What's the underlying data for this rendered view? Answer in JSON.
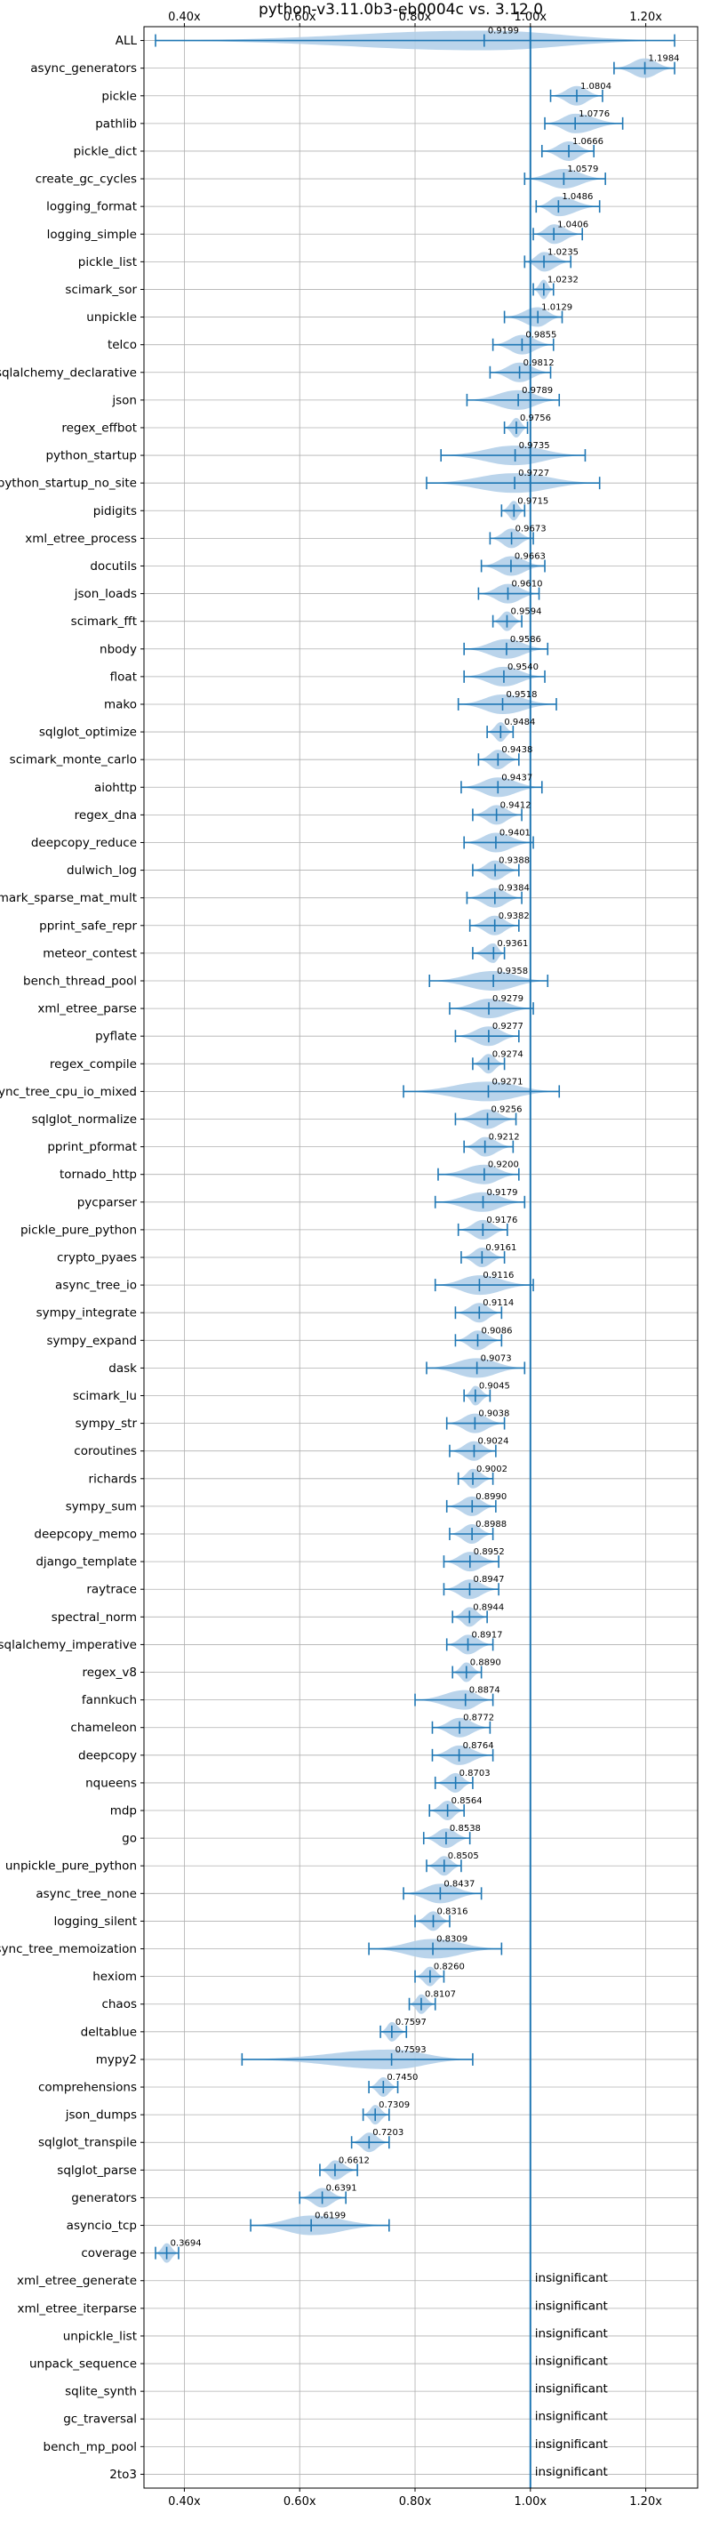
{
  "chart_data": {
    "type": "violin",
    "title": "python-v3.11.0b3-eb0004c vs. 3.12.0",
    "xlim": [
      0.33,
      1.29
    ],
    "x_ticks": [
      0.4,
      0.6,
      0.8,
      1.0,
      1.2
    ],
    "x_tick_labels": [
      "0.40x",
      "0.60x",
      "0.80x",
      "1.00x",
      "1.20x"
    ],
    "x_tick_positions": [
      "top",
      "bottom"
    ],
    "grid": true,
    "reference_line": 1.0,
    "colors": {
      "violin": "#aecde8",
      "whisker": "#1f77b4",
      "reference": "#1f77b4",
      "grid": "#b0b0b0"
    },
    "categories": [
      "ALL",
      "async_generators",
      "pickle",
      "pathlib",
      "pickle_dict",
      "create_gc_cycles",
      "logging_format",
      "logging_simple",
      "pickle_list",
      "scimark_sor",
      "unpickle",
      "telco",
      "sqlalchemy_declarative",
      "json",
      "regex_effbot",
      "python_startup",
      "python_startup_no_site",
      "pidigits",
      "xml_etree_process",
      "docutils",
      "json_loads",
      "scimark_fft",
      "nbody",
      "float",
      "mako",
      "sqlglot_optimize",
      "scimark_monte_carlo",
      "aiohttp",
      "regex_dna",
      "deepcopy_reduce",
      "dulwich_log",
      "scimark_sparse_mat_mult",
      "pprint_safe_repr",
      "meteor_contest",
      "bench_thread_pool",
      "xml_etree_parse",
      "pyflate",
      "regex_compile",
      "async_tree_cpu_io_mixed",
      "sqlglot_normalize",
      "pprint_pformat",
      "tornado_http",
      "pycparser",
      "pickle_pure_python",
      "crypto_pyaes",
      "async_tree_io",
      "sympy_integrate",
      "sympy_expand",
      "dask",
      "scimark_lu",
      "sympy_str",
      "coroutines",
      "richards",
      "sympy_sum",
      "deepcopy_memo",
      "django_template",
      "raytrace",
      "spectral_norm",
      "sqlalchemy_imperative",
      "regex_v8",
      "fannkuch",
      "chameleon",
      "deepcopy",
      "nqueens",
      "mdp",
      "go",
      "unpickle_pure_python",
      "async_tree_none",
      "logging_silent",
      "async_tree_memoization",
      "hexiom",
      "chaos",
      "deltablue",
      "mypy2",
      "comprehensions",
      "json_dumps",
      "sqlglot_transpile",
      "sqlglot_parse",
      "generators",
      "asyncio_tcp",
      "coverage",
      "xml_etree_generate",
      "xml_etree_iterparse",
      "unpickle_list",
      "unpack_sequence",
      "sqlite_synth",
      "gc_traversal",
      "bench_mp_pool",
      "2to3"
    ],
    "values": [
      0.9199,
      1.1984,
      1.0804,
      1.0776,
      1.0666,
      1.0579,
      1.0486,
      1.0406,
      1.0235,
      1.0232,
      1.0129,
      0.9855,
      0.9812,
      0.9789,
      0.9756,
      0.9735,
      0.9727,
      0.9715,
      0.9673,
      0.9663,
      0.961,
      0.9594,
      0.9586,
      0.954,
      0.9518,
      0.9484,
      0.9438,
      0.9437,
      0.9412,
      0.9401,
      0.9388,
      0.9384,
      0.9382,
      0.9361,
      0.9358,
      0.9279,
      0.9277,
      0.9274,
      0.9271,
      0.9256,
      0.9212,
      0.92,
      0.9179,
      0.9176,
      0.9161,
      0.9116,
      0.9114,
      0.9086,
      0.9073,
      0.9045,
      0.9038,
      0.9024,
      0.9002,
      0.899,
      0.8988,
      0.8952,
      0.8947,
      0.8944,
      0.8917,
      0.889,
      0.8874,
      0.8772,
      0.8764,
      0.8703,
      0.8564,
      0.8538,
      0.8505,
      0.8437,
      0.8316,
      0.8309,
      0.826,
      0.8107,
      0.7597,
      0.7593,
      0.745,
      0.7309,
      0.7203,
      0.6612,
      0.6391,
      0.6199,
      0.3694,
      null,
      null,
      null,
      null,
      null,
      null,
      null,
      null
    ],
    "value_labels": [
      "0.9199",
      "1.1984",
      "1.0804",
      "1.0776",
      "1.0666",
      "1.0579",
      "1.0486",
      "1.0406",
      "1.0235",
      "1.0232",
      "1.0129",
      "0.9855",
      "0.9812",
      "0.9789",
      "0.9756",
      "0.9735",
      "0.9727",
      "0.9715",
      "0.9673",
      "0.9663",
      "0.9610",
      "0.9594",
      "0.9586",
      "0.9540",
      "0.9518",
      "0.9484",
      "0.9438",
      "0.9437",
      "0.9412",
      "0.9401",
      "0.9388",
      "0.9384",
      "0.9382",
      "0.9361",
      "0.9358",
      "0.9279",
      "0.9277",
      "0.9274",
      "0.9271",
      "0.9256",
      "0.9212",
      "0.9200",
      "0.9179",
      "0.9176",
      "0.9161",
      "0.9116",
      "0.9114",
      "0.9086",
      "0.9073",
      "0.9045",
      "0.9038",
      "0.9024",
      "0.9002",
      "0.8990",
      "0.8988",
      "0.8952",
      "0.8947",
      "0.8944",
      "0.8917",
      "0.8890",
      "0.8874",
      "0.8772",
      "0.8764",
      "0.8703",
      "0.8564",
      "0.8538",
      "0.8505",
      "0.8437",
      "0.8316",
      "0.8309",
      "0.8260",
      "0.8107",
      "0.7597",
      "0.7593",
      "0.7450",
      "0.7309",
      "0.7203",
      "0.6612",
      "0.6391",
      "0.6199",
      "0.3694",
      "insignificant",
      "insignificant",
      "insignificant",
      "insignificant",
      "insignificant",
      "insignificant",
      "insignificant",
      "insignificant"
    ],
    "whisker_ranges": [
      [
        0.35,
        1.25
      ],
      [
        1.145,
        1.25
      ],
      [
        1.035,
        1.125
      ],
      [
        1.025,
        1.16
      ],
      [
        1.02,
        1.11
      ],
      [
        0.99,
        1.13
      ],
      [
        1.01,
        1.12
      ],
      [
        1.005,
        1.09
      ],
      [
        0.99,
        1.07
      ],
      [
        1.005,
        1.04
      ],
      [
        0.955,
        1.055
      ],
      [
        0.935,
        1.04
      ],
      [
        0.93,
        1.035
      ],
      [
        0.89,
        1.05
      ],
      [
        0.955,
        0.995
      ],
      [
        0.845,
        1.095
      ],
      [
        0.82,
        1.12
      ],
      [
        0.95,
        0.99
      ],
      [
        0.93,
        1.005
      ],
      [
        0.915,
        1.025
      ],
      [
        0.91,
        1.015
      ],
      [
        0.935,
        0.985
      ],
      [
        0.885,
        1.03
      ],
      [
        0.885,
        1.025
      ],
      [
        0.875,
        1.045
      ],
      [
        0.925,
        0.97
      ],
      [
        0.91,
        0.98
      ],
      [
        0.88,
        1.02
      ],
      [
        0.9,
        0.985
      ],
      [
        0.885,
        1.005
      ],
      [
        0.9,
        0.98
      ],
      [
        0.89,
        0.985
      ],
      [
        0.895,
        0.98
      ],
      [
        0.9,
        0.955
      ],
      [
        0.825,
        1.03
      ],
      [
        0.86,
        1.005
      ],
      [
        0.87,
        0.98
      ],
      [
        0.9,
        0.955
      ],
      [
        0.78,
        1.05
      ],
      [
        0.87,
        0.975
      ],
      [
        0.885,
        0.97
      ],
      [
        0.84,
        0.98
      ],
      [
        0.835,
        0.99
      ],
      [
        0.875,
        0.96
      ],
      [
        0.88,
        0.955
      ],
      [
        0.835,
        1.005
      ],
      [
        0.87,
        0.95
      ],
      [
        0.87,
        0.95
      ],
      [
        0.82,
        0.99
      ],
      [
        0.885,
        0.93
      ],
      [
        0.855,
        0.955
      ],
      [
        0.86,
        0.94
      ],
      [
        0.875,
        0.935
      ],
      [
        0.855,
        0.94
      ],
      [
        0.86,
        0.935
      ],
      [
        0.85,
        0.945
      ],
      [
        0.85,
        0.945
      ],
      [
        0.865,
        0.925
      ],
      [
        0.855,
        0.935
      ],
      [
        0.865,
        0.915
      ],
      [
        0.8,
        0.935
      ],
      [
        0.83,
        0.93
      ],
      [
        0.83,
        0.935
      ],
      [
        0.835,
        0.9
      ],
      [
        0.825,
        0.885
      ],
      [
        0.815,
        0.895
      ],
      [
        0.82,
        0.88
      ],
      [
        0.78,
        0.915
      ],
      [
        0.8,
        0.86
      ],
      [
        0.72,
        0.95
      ],
      [
        0.8,
        0.85
      ],
      [
        0.79,
        0.835
      ],
      [
        0.74,
        0.785
      ],
      [
        0.5,
        0.9
      ],
      [
        0.72,
        0.77
      ],
      [
        0.71,
        0.755
      ],
      [
        0.69,
        0.755
      ],
      [
        0.635,
        0.7
      ],
      [
        0.6,
        0.68
      ],
      [
        0.515,
        0.755
      ],
      [
        0.35,
        0.39
      ],
      null,
      null,
      null,
      null,
      null,
      null,
      null,
      null
    ],
    "insignificant_label": "insignificant"
  }
}
